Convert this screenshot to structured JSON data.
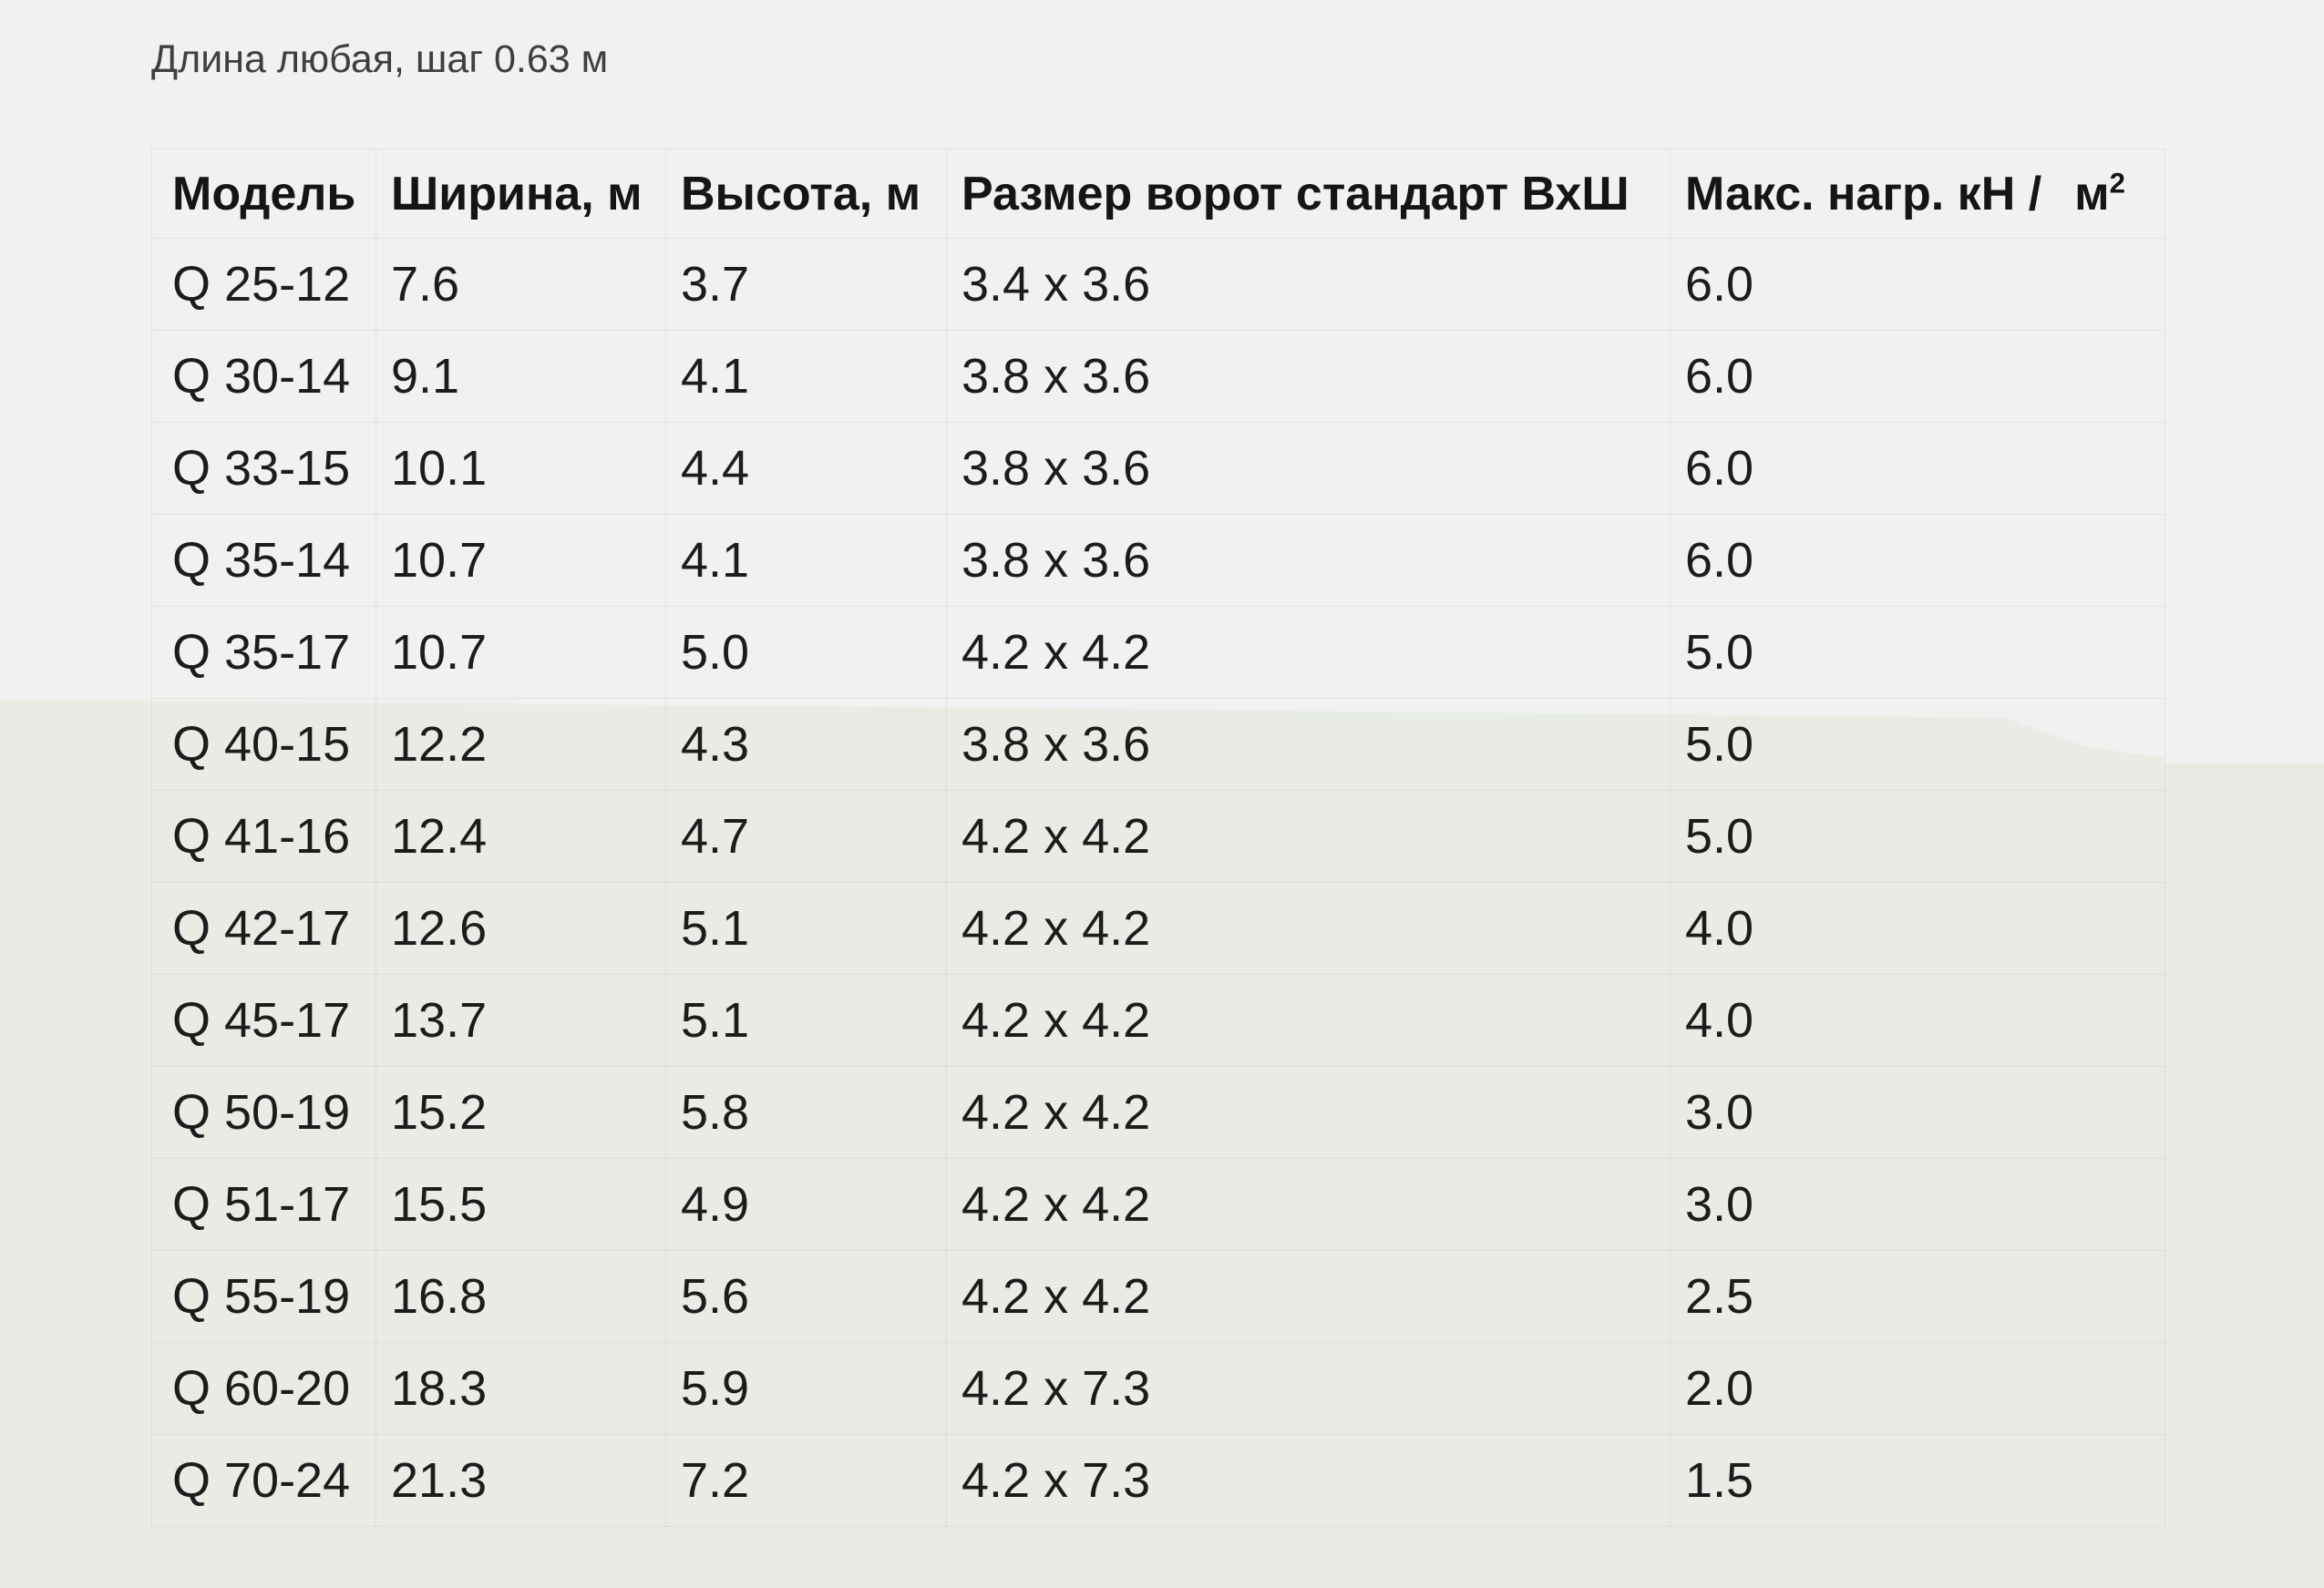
{
  "page": {
    "bg_top_color": "#f1f1f1",
    "bg_bottom_color": "#e8ece4",
    "border_color": "#e5e5e5"
  },
  "intro": {
    "text": "Длина любая, шаг 0.63 м"
  },
  "table": {
    "headers": {
      "model": "Модель",
      "width": "Ширина, м",
      "height": "Высота, м",
      "gate": "Размер ворот стандарт ВхШ",
      "load_main": "Макс. нагр. кН /",
      "load_unit": "м",
      "load_sup": "2"
    },
    "rows": [
      [
        "Q 25-12",
        "7.6",
        "3.7",
        "3.4 x 3.6",
        "6.0"
      ],
      [
        "Q 30-14",
        "9.1",
        "4.1",
        "3.8 x 3.6",
        "6.0"
      ],
      [
        "Q 33-15",
        "10.1",
        "4.4",
        "3.8 x 3.6",
        "6.0"
      ],
      [
        "Q 35-14",
        "10.7",
        "4.1",
        "3.8 x 3.6",
        "6.0"
      ],
      [
        "Q 35-17",
        "10.7",
        "5.0",
        "4.2 x 4.2",
        "5.0"
      ],
      [
        "Q 40-15",
        "12.2",
        "4.3",
        "3.8 x 3.6",
        "5.0"
      ],
      [
        "Q 41-16",
        "12.4",
        "4.7",
        "4.2 x 4.2",
        "5.0"
      ],
      [
        "Q 42-17",
        "12.6",
        "5.1",
        "4.2 x 4.2",
        "4.0"
      ],
      [
        "Q 45-17",
        "13.7",
        "5.1",
        "4.2 x 4.2",
        "4.0"
      ],
      [
        "Q 50-19",
        "15.2",
        "5.8",
        "4.2 x 4.2",
        "3.0"
      ],
      [
        "Q 51-17",
        "15.5",
        "4.9",
        "4.2 x 4.2",
        "3.0"
      ],
      [
        "Q 55-19",
        "16.8",
        "5.6",
        "4.2 x 4.2",
        "2.5"
      ],
      [
        "Q 60-20",
        "18.3",
        "5.9",
        "4.2 x 7.3",
        "2.0"
      ],
      [
        "Q 70-24",
        "21.3",
        "7.2",
        "4.2 x 7.3",
        "1.5"
      ]
    ]
  }
}
